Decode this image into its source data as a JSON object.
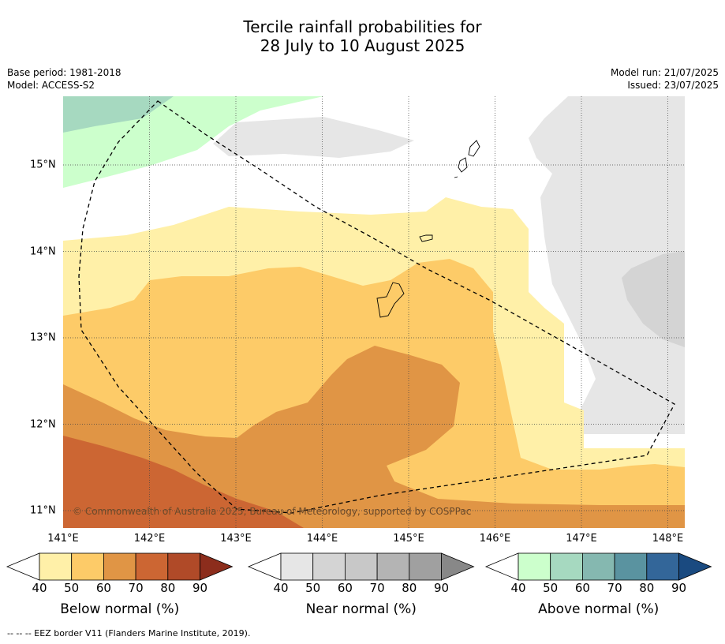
{
  "title_line1": "Tercile rainfall probabilities for",
  "title_line2": "28 July to 10 August 2025",
  "meta_left": {
    "base_period": "Base period: 1981-2018",
    "model": "Model: ACCESS-S2"
  },
  "meta_right": {
    "model_run": "Model run: 21/07/2025",
    "issued": "Issued: 23/07/2025"
  },
  "map": {
    "x_ticks": [
      "141°E",
      "142°E",
      "143°E",
      "144°E",
      "145°E",
      "146°E",
      "147°E",
      "148°E"
    ],
    "y_ticks": [
      "15°N",
      "14°N",
      "13°N",
      "12°N",
      "11°N"
    ],
    "copyright": "© Commonwealth of Australia 2025, Bureau of Meteorology, supported by COSPPac"
  },
  "colorbars": [
    {
      "label": "Below normal (%)",
      "ticks": [
        "40",
        "50",
        "60",
        "70",
        "80",
        "90"
      ],
      "colors": [
        "#fff0a8",
        "#fdcb68",
        "#e09545",
        "#cc6633",
        "#b04a28",
        "#8c2d1c"
      ]
    },
    {
      "label": "Near normal (%)",
      "ticks": [
        "40",
        "50",
        "60",
        "70",
        "80",
        "90"
      ],
      "colors": [
        "#e6e6e6",
        "#d4d4d4",
        "#c8c8c8",
        "#b4b4b4",
        "#a0a0a0",
        "#888888"
      ]
    },
    {
      "label": "Above normal (%)",
      "ticks": [
        "40",
        "50",
        "60",
        "70",
        "80",
        "90"
      ],
      "colors": [
        "#ccffcc",
        "#a6d9c0",
        "#85b8b0",
        "#5a93a0",
        "#336699",
        "#1a4a80"
      ]
    }
  ],
  "footer": "--  --  -- EEZ border V11 (Flanders Marine Institute, 2019)."
}
